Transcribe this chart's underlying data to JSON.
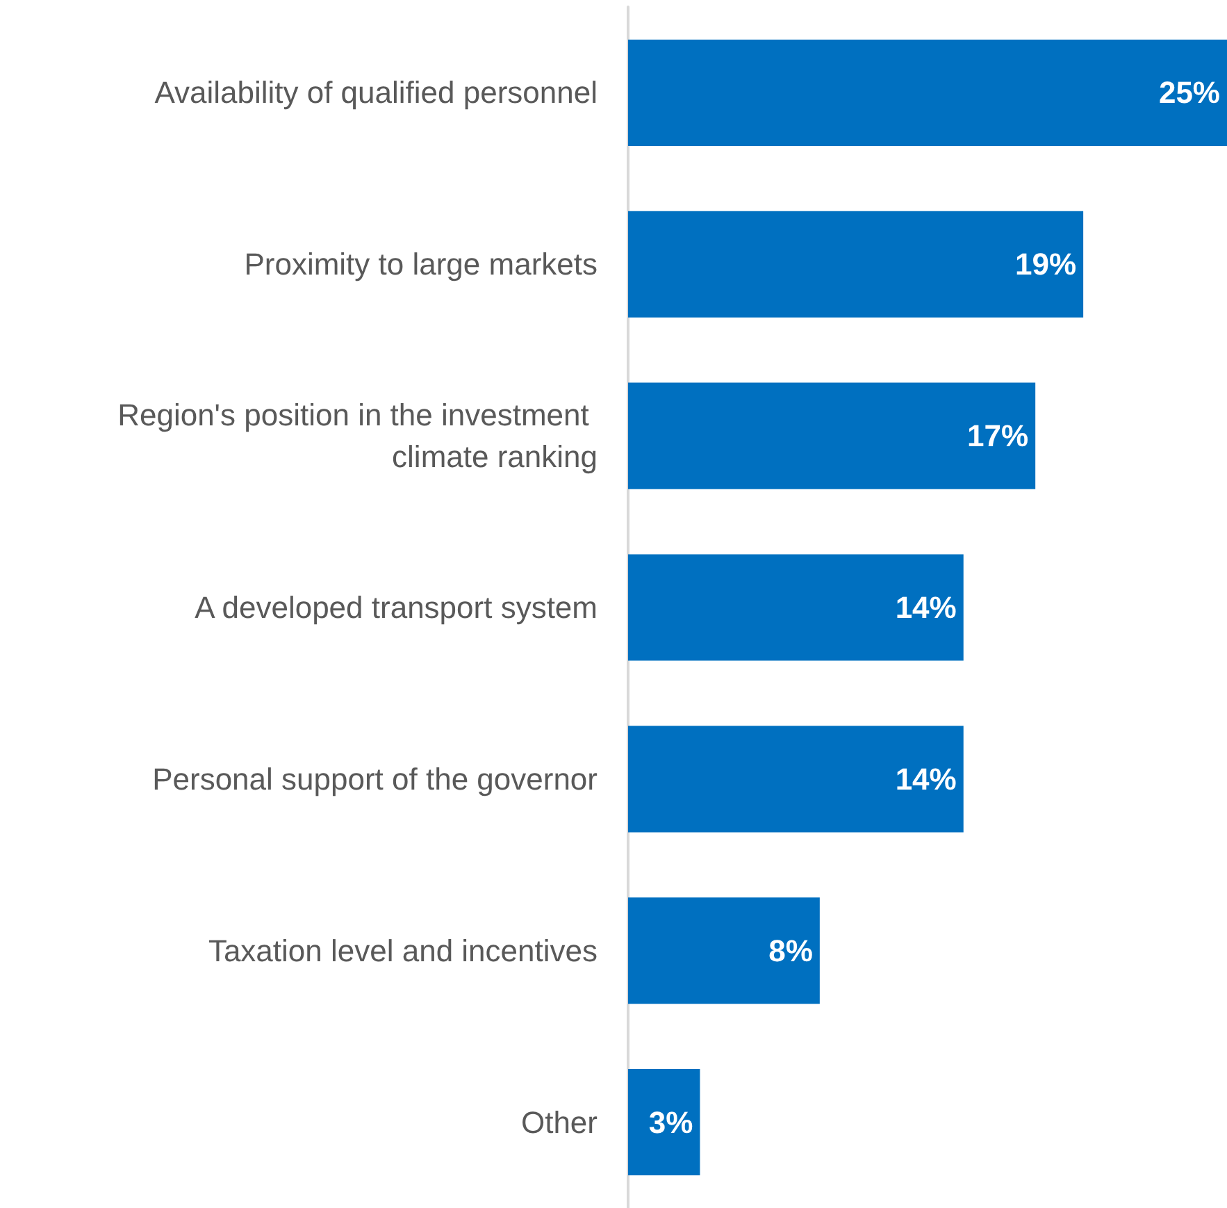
{
  "chart_data": {
    "type": "bar",
    "orientation": "horizontal",
    "categories": [
      "Availability of qualified personnel",
      "Proximity to large markets",
      "Region's position in the investment climate ranking",
      "A developed transport system",
      "Personal support of the governor",
      "Taxation level and incentives",
      "Other"
    ],
    "series": [
      {
        "color": "#0070c0",
        "values": [
          25,
          19,
          17,
          14,
          14,
          8,
          3
        ],
        "value_labels": [
          "25%",
          "19%",
          "17%",
          "14%",
          "14%",
          "8%",
          "3%"
        ]
      }
    ],
    "tick_labels": "y"
  }
}
